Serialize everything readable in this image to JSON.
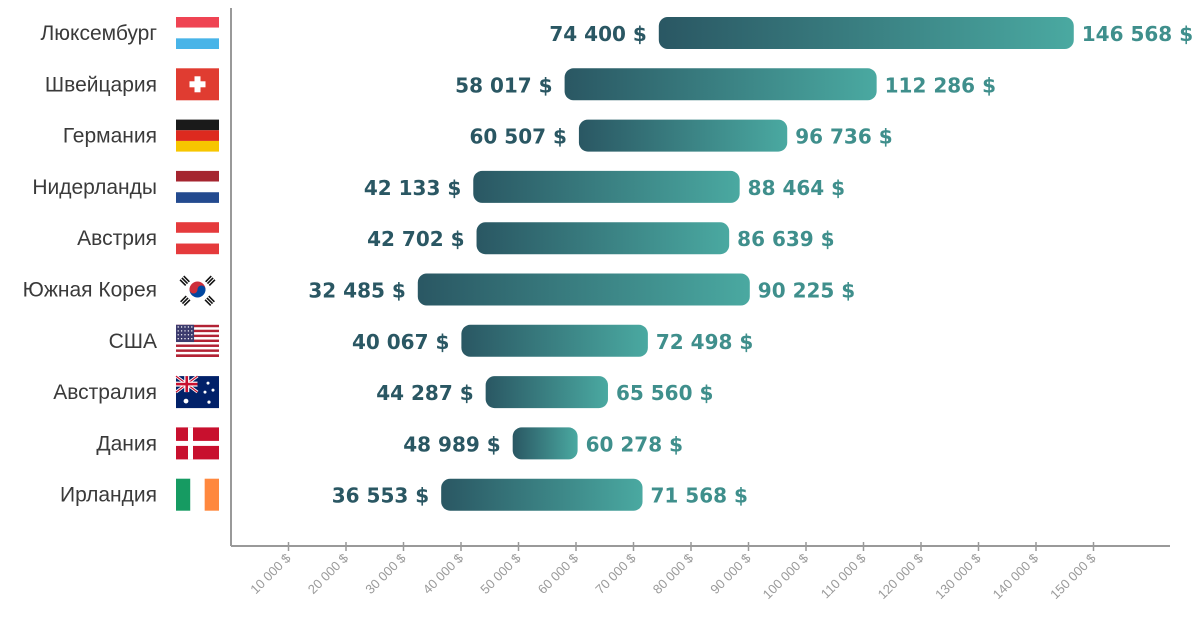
{
  "chart_data": {
    "type": "bar",
    "subtype": "floating-range-bar",
    "orientation": "horizontal",
    "categories": [
      "Люксембург",
      "Швейцария",
      "Германия",
      "Нидерланды",
      "Австрия",
      "Южная Корея",
      "США",
      "Австралия",
      "Дания",
      "Ирландия"
    ],
    "flags": [
      "flag-luxembourg-icon",
      "flag-switzerland-icon",
      "flag-germany-icon",
      "flag-netherlands-icon",
      "flag-austria-icon",
      "flag-south-korea-icon",
      "flag-usa-icon",
      "flag-australia-icon",
      "flag-denmark-icon",
      "flag-ireland-icon"
    ],
    "low": [
      74400,
      58017,
      60507,
      42133,
      42702,
      32485,
      40067,
      44287,
      48989,
      36553
    ],
    "high": [
      146568,
      112286,
      96736,
      88464,
      86639,
      90225,
      72498,
      65560,
      60278,
      71568
    ],
    "low_labels": [
      "74 400 $",
      "58 017 $",
      "60 507 $",
      "42 133 $",
      "42 702 $",
      "32 485 $",
      "40 067 $",
      "44 287 $",
      "48 989 $",
      "36 553 $"
    ],
    "high_labels": [
      "146 568 $",
      "112 286 $",
      "96 736 $",
      "88 464 $",
      "86 639 $",
      "90 225 $",
      "72 498 $",
      "65 560 $",
      "60 278 $",
      "71 568  $"
    ],
    "x_ticks": [
      10000,
      20000,
      30000,
      40000,
      50000,
      60000,
      70000,
      80000,
      90000,
      100000,
      110000,
      120000,
      130000,
      140000,
      150000
    ],
    "x_tick_labels": [
      "10 000 $",
      "20 000 $",
      "30 000 $",
      "40 000 $",
      "50 000 $",
      "60 000 $",
      "70 000 $",
      "80 000 $",
      "90 000 $",
      "100 000 $",
      "110 000 $",
      "120 000 $",
      "130 000 $",
      "140 000 $",
      "150 000 $"
    ],
    "xlim": [
      0,
      160000
    ],
    "title": "",
    "xlabel": "",
    "ylabel": "",
    "grid": false,
    "legend": "none",
    "colors": {
      "bar_dark": "#2a5763",
      "bar_light": "#4aa9a1",
      "low_label": "#2a5763",
      "high_label": "#3f8f8c",
      "axis": "#999999",
      "tick_label": "#9a9a9a",
      "country_label": "#3a3a3a"
    }
  }
}
